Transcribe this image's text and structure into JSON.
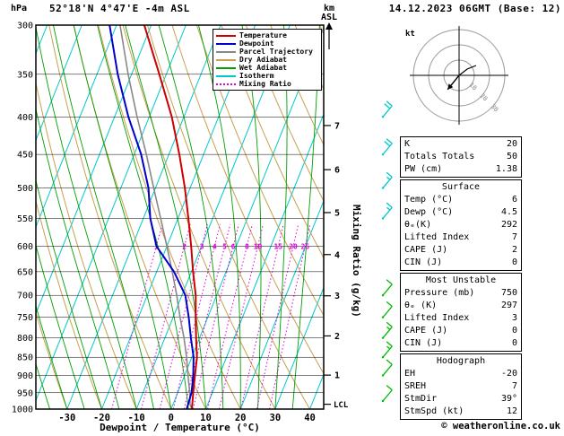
{
  "header": {
    "pressure_unit": "hPa",
    "station": "52°18'N 4°47'E -4m ASL",
    "datetime": "14.12.2023 06GMT (Base: 12)",
    "altitude_unit_line1": "km",
    "altitude_unit_line2": "ASL"
  },
  "axes": {
    "pressure_ticks": [
      300,
      350,
      400,
      450,
      500,
      550,
      600,
      650,
      700,
      750,
      800,
      850,
      900,
      950,
      1000
    ],
    "temperature_ticks": [
      -30,
      -20,
      -10,
      0,
      10,
      20,
      30,
      40
    ],
    "km_ticks": [
      1,
      2,
      3,
      4,
      5,
      6,
      7
    ],
    "lcl_label": "LCL",
    "x_axis_label": "Dewpoint / Temperature (°C)",
    "mixing_ratio_axis_label": "Mixing Ratio (g/kg)"
  },
  "colors": {
    "temperature": "#cc0000",
    "dewpoint": "#0000cc",
    "parcel": "#888888",
    "dry_adiabat": "#c8a050",
    "wet_adiabat": "#00a000",
    "isotherm": "#00c8c8",
    "mixing_ratio": "#dd00dd",
    "wind_upper": "#00c8c8",
    "wind_lower": "#00bb00"
  },
  "legend": [
    {
      "label": "Temperature",
      "color_key": "temperature",
      "dashed": false
    },
    {
      "label": "Dewpoint",
      "color_key": "dewpoint",
      "dashed": false
    },
    {
      "label": "Parcel Trajectory",
      "color_key": "parcel",
      "dashed": false
    },
    {
      "label": "Dry Adiabat",
      "color_key": "dry_adiabat",
      "dashed": false
    },
    {
      "label": "Wet Adiabat",
      "color_key": "wet_adiabat",
      "dashed": false
    },
    {
      "label": "Isotherm",
      "color_key": "isotherm",
      "dashed": false
    },
    {
      "label": "Mixing Ratio",
      "color_key": "mixing_ratio",
      "dashed": true
    }
  ],
  "panels": [
    {
      "title": null,
      "rows": [
        [
          "K",
          "20"
        ],
        [
          "Totals Totals",
          "50"
        ],
        [
          "PW (cm)",
          "1.38"
        ]
      ]
    },
    {
      "title": "Surface",
      "rows": [
        [
          "Temp (°C)",
          "6"
        ],
        [
          "Dewp (°C)",
          "4.5"
        ],
        [
          "θₑ(K)",
          "292"
        ],
        [
          "Lifted Index",
          "7"
        ],
        [
          "CAPE (J)",
          "2"
        ],
        [
          "CIN (J)",
          "0"
        ]
      ]
    },
    {
      "title": "Most Unstable",
      "rows": [
        [
          "Pressure (mb)",
          "750"
        ],
        [
          "θₑ (K)",
          "297"
        ],
        [
          "Lifted Index",
          "3"
        ],
        [
          "CAPE (J)",
          "0"
        ],
        [
          "CIN (J)",
          "0"
        ]
      ]
    },
    {
      "title": "Hodograph",
      "rows": [
        [
          "EH",
          "-20"
        ],
        [
          "SREH",
          "7"
        ],
        [
          "StmDir",
          "39°"
        ],
        [
          "StmSpd (kt)",
          "12"
        ]
      ]
    }
  ],
  "copyright": "© weatheronline.co.uk",
  "chart_data": {
    "type": "skewt_sounding",
    "pressure_axis": {
      "min": 300,
      "max": 1000,
      "scale": "log",
      "unit": "hPa"
    },
    "temperature_axis": {
      "min": -39,
      "max": 44,
      "unit": "°C",
      "skew": 0.4
    },
    "isotherm_step": 10,
    "dry_adiabat_step": 10,
    "wet_adiabat_step": 5,
    "mixing_ratio_lines": [
      1,
      2,
      3,
      4,
      5,
      6,
      8,
      10,
      15,
      20,
      25
    ],
    "mixing_ratio_label_pressure": 600,
    "lcl_pressure": 985,
    "temperature_profile": [
      [
        1000,
        6
      ],
      [
        950,
        4.5
      ],
      [
        900,
        3
      ],
      [
        850,
        1.5
      ],
      [
        800,
        -1
      ],
      [
        750,
        -3.5
      ],
      [
        700,
        -6
      ],
      [
        650,
        -9.5
      ],
      [
        600,
        -13
      ],
      [
        550,
        -17
      ],
      [
        500,
        -21.5
      ],
      [
        450,
        -27
      ],
      [
        400,
        -33.5
      ],
      [
        350,
        -42
      ],
      [
        300,
        -52
      ]
    ],
    "dewpoint_profile": [
      [
        1000,
        4.5
      ],
      [
        950,
        4
      ],
      [
        900,
        2.5
      ],
      [
        850,
        0.5
      ],
      [
        800,
        -2.5
      ],
      [
        750,
        -5.5
      ],
      [
        700,
        -9
      ],
      [
        650,
        -15
      ],
      [
        600,
        -23
      ],
      [
        550,
        -28
      ],
      [
        500,
        -32
      ],
      [
        450,
        -38
      ],
      [
        400,
        -46
      ],
      [
        350,
        -54
      ],
      [
        300,
        -62
      ]
    ],
    "parcel_profile": [
      [
        1000,
        6
      ],
      [
        985,
        4.9
      ],
      [
        950,
        3.5
      ],
      [
        900,
        1
      ],
      [
        850,
        -1.5
      ],
      [
        800,
        -4.5
      ],
      [
        750,
        -8
      ],
      [
        700,
        -11.5
      ],
      [
        650,
        -15.5
      ],
      [
        600,
        -20
      ],
      [
        550,
        -25
      ],
      [
        500,
        -30.5
      ],
      [
        450,
        -36.5
      ],
      [
        400,
        -43.5
      ],
      [
        350,
        -51
      ],
      [
        300,
        -59
      ]
    ],
    "wind_barbs": [
      {
        "pressure": 400,
        "speed_kt": 20,
        "direction_deg": 40,
        "color_key": "wind_upper"
      },
      {
        "pressure": 450,
        "speed_kt": 20,
        "direction_deg": 40,
        "color_key": "wind_upper"
      },
      {
        "pressure": 500,
        "speed_kt": 15,
        "direction_deg": 40,
        "color_key": "wind_upper"
      },
      {
        "pressure": 550,
        "speed_kt": 15,
        "direction_deg": 40,
        "color_key": "wind_upper"
      },
      {
        "pressure": 700,
        "speed_kt": 10,
        "direction_deg": 40,
        "color_key": "wind_lower"
      },
      {
        "pressure": 750,
        "speed_kt": 10,
        "direction_deg": 40,
        "color_key": "wind_lower"
      },
      {
        "pressure": 800,
        "speed_kt": 15,
        "direction_deg": 40,
        "color_key": "wind_lower"
      },
      {
        "pressure": 850,
        "speed_kt": 15,
        "direction_deg": 40,
        "color_key": "wind_lower"
      },
      {
        "pressure": 900,
        "speed_kt": 10,
        "direction_deg": 40,
        "color_key": "wind_lower"
      },
      {
        "pressure": 975,
        "speed_kt": 10,
        "direction_deg": 40,
        "color_key": "wind_lower"
      }
    ],
    "hodograph": {
      "unit_label": "kt",
      "ring_speeds_kt": [
        10,
        20,
        30
      ],
      "storm_direction_deg": 39,
      "storm_speed_kt": 12
    }
  }
}
